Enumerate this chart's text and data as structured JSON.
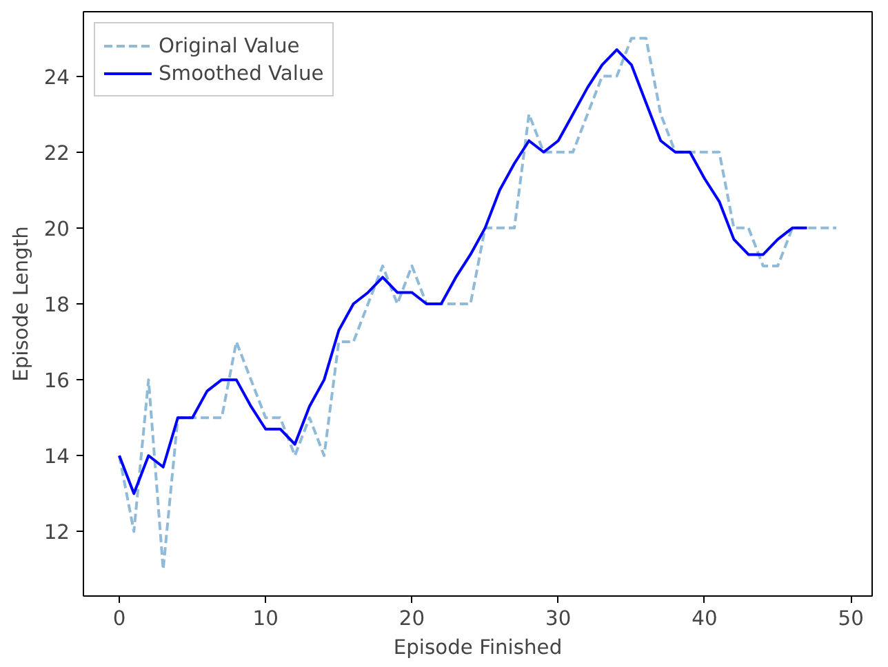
{
  "chart_data": {
    "type": "line",
    "xlabel": "Episode Finished",
    "ylabel": "Episode Length",
    "xlim": [
      -2.45,
      51.45
    ],
    "ylim": [
      10.3,
      25.7
    ],
    "xticks": [
      0,
      10,
      20,
      30,
      40,
      50
    ],
    "yticks": [
      12,
      14,
      16,
      18,
      20,
      22,
      24
    ],
    "grid": false,
    "legend": "top left",
    "series": [
      {
        "name": "Original Value",
        "color": "#8fbbd9",
        "line_style": "dashed",
        "x": [
          0,
          1,
          2,
          3,
          4,
          5,
          6,
          7,
          8,
          9,
          10,
          11,
          12,
          13,
          14,
          15,
          16,
          17,
          18,
          19,
          20,
          21,
          22,
          23,
          24,
          25,
          26,
          27,
          28,
          29,
          30,
          31,
          32,
          33,
          34,
          35,
          36,
          37,
          38,
          39,
          40,
          41,
          42,
          43,
          44,
          45,
          46,
          47,
          48,
          49
        ],
        "values": [
          14,
          12,
          16,
          11,
          15,
          15,
          15,
          15,
          17,
          16,
          15,
          15,
          14,
          15,
          14,
          17,
          17,
          18,
          19,
          18,
          19,
          18,
          18,
          18,
          18,
          20,
          20,
          20,
          23,
          22,
          22,
          22,
          23,
          24,
          24,
          25,
          25,
          23,
          22,
          22,
          22,
          22,
          20,
          20,
          19,
          19,
          20,
          20,
          20,
          20
        ]
      },
      {
        "name": "Smoothed Value",
        "color": "#0000ff",
        "line_style": "solid",
        "x": [
          0,
          1,
          2,
          3,
          4,
          5,
          6,
          7,
          8,
          9,
          10,
          11,
          12,
          13,
          14,
          15,
          16,
          17,
          18,
          19,
          20,
          21,
          22,
          23,
          24,
          25,
          26,
          27,
          28,
          29,
          30,
          31,
          32,
          33,
          34,
          35,
          36,
          37,
          38,
          39,
          40,
          41,
          42,
          43,
          44,
          45,
          46,
          47
        ],
        "values": [
          14,
          13,
          14,
          13.7,
          15,
          15,
          15.7,
          16,
          16,
          15.3,
          14.7,
          14.7,
          14.3,
          15.3,
          16,
          17.3,
          18,
          18.3,
          18.7,
          18.3,
          18.3,
          18,
          18,
          18.7,
          19.3,
          20,
          21,
          21.7,
          22.3,
          22,
          22.3,
          23,
          23.7,
          24.3,
          24.7,
          24.3,
          23.3,
          22.3,
          22,
          22,
          21.3,
          20.7,
          19.7,
          19.3,
          19.3,
          19.7,
          20,
          20
        ]
      }
    ]
  }
}
